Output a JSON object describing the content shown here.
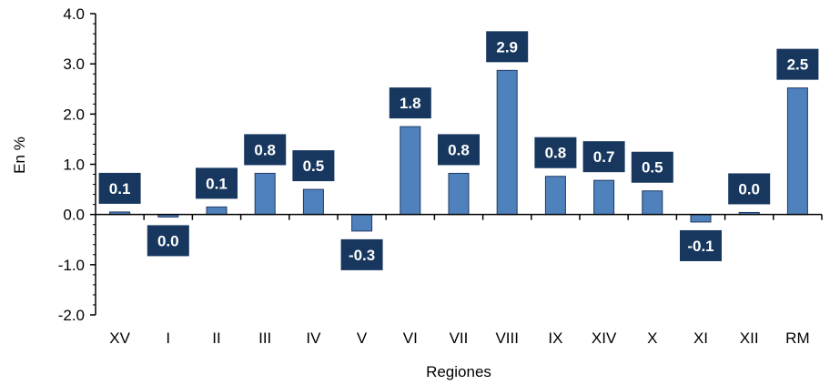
{
  "chart_data": {
    "type": "bar",
    "title": "",
    "xlabel": "Regiones",
    "ylabel": "En %",
    "categories": [
      "XV",
      "I",
      "II",
      "III",
      "IV",
      "V",
      "VI",
      "VII",
      "VIII",
      "IX",
      "XIV",
      "X",
      "XI",
      "XII",
      "RM"
    ],
    "values": [
      0.05,
      -0.05,
      0.15,
      0.82,
      0.5,
      -0.33,
      1.75,
      0.82,
      2.87,
      0.76,
      0.68,
      0.47,
      -0.15,
      0.04,
      2.52
    ],
    "data_labels": [
      "0.1",
      "0.0",
      "0.1",
      "0.8",
      "0.5",
      "-0.3",
      "1.8",
      "0.8",
      "2.9",
      "0.8",
      "0.7",
      "0.5",
      "-0.1",
      "0.0",
      "2.5"
    ],
    "ylim": [
      -2.0,
      4.0
    ],
    "yticks": [
      "4.0",
      "3.0",
      "2.0",
      "1.0",
      "0.0",
      "-1.0",
      "-2.0"
    ],
    "grid": false,
    "colors": {
      "bar": "#4F81BD",
      "bar_edge": "#1F3864",
      "label_box": "#17375E",
      "label_text": "#FFFFFF",
      "axis": "#000000"
    }
  }
}
